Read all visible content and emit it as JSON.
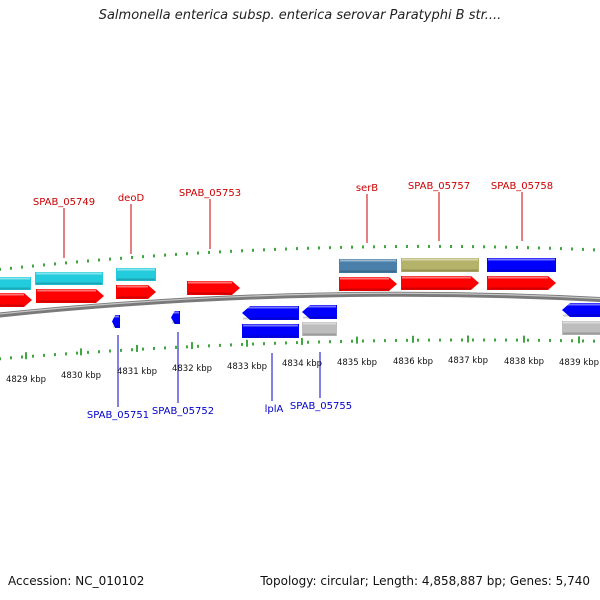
{
  "title": "Salmonella enterica subsp. enterica serovar Paratyphi B str....",
  "footer": {
    "accession": "Accession: NC_010102",
    "topology": "Topology: circular; Length: 4,858,887 bp; Genes: 5,740"
  },
  "colors": {
    "forward_gene": "#ff0000",
    "reverse_gene": "#0000ff",
    "label_forward": "#cc0000",
    "label_reverse": "#0000cc",
    "tick": "#008800",
    "backbone": "#8a8a8a"
  },
  "scale_labels": [
    "4829 kbp",
    "4830 kbp",
    "4831 kbp",
    "4832 kbp",
    "4833 kbp",
    "4834 kbp",
    "4835 kbp",
    "4836 kbp",
    "4837 kbp",
    "4838 kbp",
    "4839 kbp"
  ],
  "top_labels": [
    "SPAB_05749",
    "deoD",
    "SPAB_05753",
    "serB",
    "SPAB_05757",
    "SPAB_05758"
  ],
  "bottom_labels": [
    "SPAB_05751",
    "SPAB_05752",
    "lplA",
    "SPAB_05755"
  ]
}
